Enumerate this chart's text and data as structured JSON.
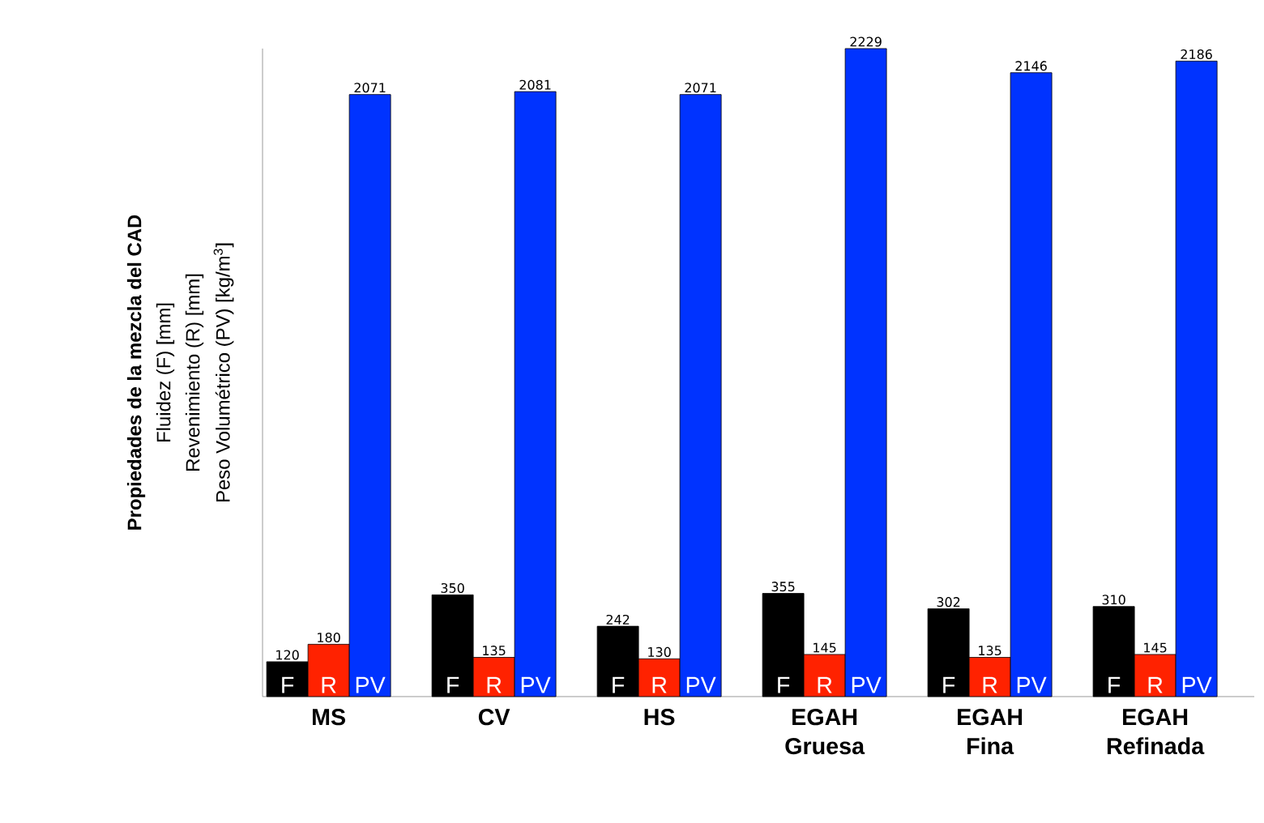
{
  "chart_data": {
    "type": "bar",
    "annotations": [
      "Propiedades de la mezcla del CAD",
      "Fluidez (F) [mm]",
      "Revenimiento (R) [mm]",
      "Peso Volumétrico (PV) [kg/m$^{3}$]"
    ],
    "categories": [
      "MS",
      "CV",
      "HS",
      "EGAH Gruesa",
      "EGAH Fina",
      "EGAH Refinada"
    ],
    "series": [
      {
        "name": "F",
        "color": "#000000",
        "values": [
          120,
          350,
          242,
          355,
          302,
          310
        ]
      },
      {
        "name": "R",
        "color": "#ff2200",
        "values": [
          180,
          135,
          130,
          145,
          135,
          145
        ]
      },
      {
        "name": "PV",
        "color": "#0033ff",
        "values": [
          2071,
          2081,
          2071,
          2229,
          2146,
          2186
        ]
      }
    ],
    "data_labels": true,
    "legend": false
  }
}
